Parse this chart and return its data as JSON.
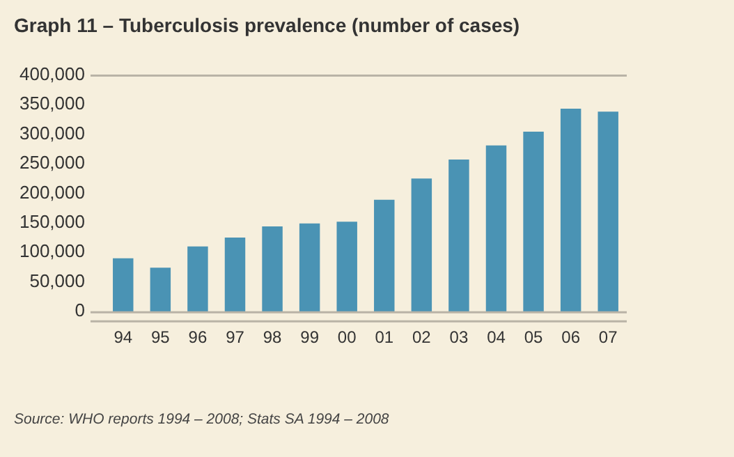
{
  "chart_data": {
    "type": "bar",
    "title": "Graph 11 – Tuberculosis prevalence (number of cases)",
    "categories": [
      "94",
      "95",
      "96",
      "97",
      "98",
      "99",
      "00",
      "01",
      "02",
      "03",
      "04",
      "05",
      "06",
      "07"
    ],
    "values": [
      90000,
      74000,
      110000,
      125000,
      144000,
      149000,
      152000,
      189000,
      225000,
      257000,
      281000,
      304000,
      343000,
      338000
    ],
    "color": "#4a93b4",
    "ylim": [
      0,
      400000
    ],
    "yticks": [
      0,
      {
        "value": 50000,
        "label": "50,000"
      },
      {
        "value": 100000,
        "label": "100,000"
      },
      {
        "value": 150000,
        "label": "150,000"
      },
      {
        "value": 200000,
        "label": "200,000"
      },
      {
        "value": 250000,
        "label": "250,000"
      },
      {
        "value": 300000,
        "label": "300,000"
      },
      {
        "value": 350000,
        "label": "350,000"
      },
      {
        "value": 400000,
        "label": "400,000"
      }
    ],
    "grid": false,
    "legend": false,
    "annotations": [
      "Source: WHO reports 1994 – 2008; Stats SA 1994 – 2008"
    ]
  }
}
